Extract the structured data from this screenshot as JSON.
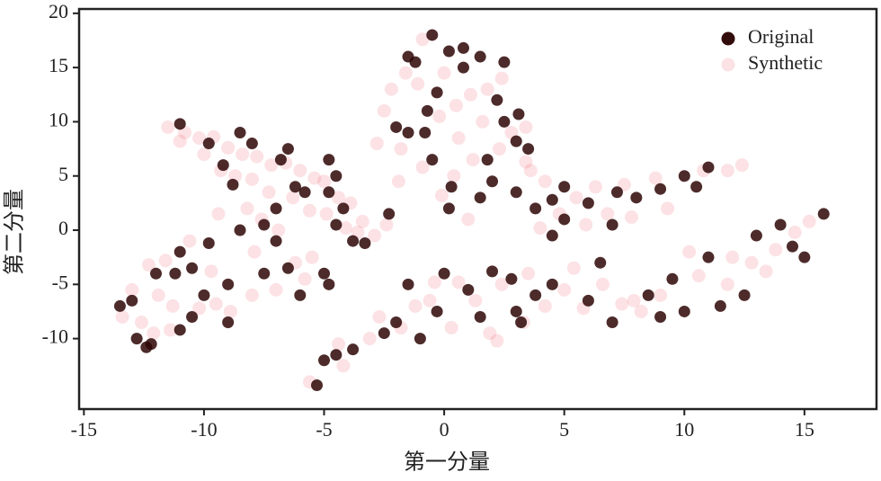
{
  "chart_data": {
    "type": "scatter",
    "x_label": "第一分量",
    "y_label": "第二分量",
    "xlim": [
      -15.2,
      18
    ],
    "ylim": [
      -16.5,
      20.4
    ],
    "xticks": [
      -15,
      -10,
      -5,
      0,
      5,
      10,
      15
    ],
    "yticks": [
      20,
      15,
      10,
      5,
      0,
      -5,
      -10
    ],
    "legend": "upper right",
    "series": [
      {
        "name": "Original",
        "color": "#2e0606",
        "opacity": 0.85,
        "x": [
          -11,
          -9.8,
          -9.2,
          -8.5,
          -8,
          -8.8,
          -6.5,
          -6.8,
          -6.2,
          -5.8,
          -7,
          -4.8,
          -4.5,
          -4.8,
          -4.2,
          -4.5,
          -3.8,
          -3.3,
          -2.3,
          -7.5,
          -8.5,
          -9.8,
          -7,
          -6.5,
          -5,
          -4.8,
          -6,
          -7.5,
          -9,
          -10,
          -10.5,
          -11,
          -11.2,
          -10.5,
          -9,
          -11,
          -12,
          -13,
          -13.5,
          -12.8,
          -12.4,
          -12.2,
          -0.5,
          0.2,
          0.8,
          1.5,
          2.5,
          -1.5,
          -1.2,
          -0.3,
          0.8,
          2.2,
          3.1,
          2.5,
          3,
          3.5,
          1.8,
          -0.7,
          -0.8,
          -1.5,
          -2,
          -0.5,
          0.3,
          0.2,
          1.5,
          2,
          3,
          3.8,
          4.5,
          5,
          5,
          6,
          7.2,
          8,
          9,
          7,
          4.5,
          10,
          10.5,
          11,
          -5.3,
          -5,
          -4.5,
          -3.8,
          -2.5,
          -2,
          -1,
          -0.3,
          -1.5,
          0,
          1,
          1.5,
          2,
          2.8,
          3,
          3.2,
          3.8,
          4.5,
          6,
          6.5,
          7,
          8.5,
          9,
          9.5,
          10,
          11,
          11.5,
          12.5,
          13,
          14,
          14.5,
          15,
          15.8
        ],
        "values": [
          9.8,
          8,
          6,
          9,
          8,
          4.2,
          7.5,
          6.5,
          4,
          3.5,
          2,
          6.5,
          5,
          3.5,
          2,
          0.5,
          -1,
          -1.2,
          1.5,
          0.5,
          0,
          -1.2,
          -1,
          -3.5,
          -4,
          -5,
          -6,
          -4,
          -5,
          -6,
          -3.5,
          -2,
          -4,
          -8,
          -8.5,
          -9.2,
          -4,
          -6.5,
          -7,
          -10,
          -10.8,
          -10.5,
          18,
          16.5,
          16.8,
          16,
          15.5,
          16,
          15.5,
          12.7,
          15,
          12,
          10.7,
          10,
          8.2,
          7.5,
          6.5,
          11,
          9,
          9,
          9.5,
          6.5,
          4,
          2,
          3,
          4.5,
          3.5,
          2,
          2.8,
          1,
          4,
          2.5,
          3.5,
          3,
          3.8,
          0.5,
          -0.5,
          5,
          4,
          5.8,
          -14.3,
          -12,
          -11.5,
          -11,
          -9.5,
          -8.5,
          -10,
          -7.5,
          -5,
          -4,
          -5.5,
          -8,
          -3.8,
          -4.5,
          -7.5,
          -8.5,
          -6,
          -5,
          -6.5,
          -3,
          -8.5,
          -6,
          -8,
          -4.5,
          -7.5,
          -2.5,
          -7,
          -6,
          -0.5,
          0.5,
          -1.5,
          -2.5,
          1.5
        ]
      },
      {
        "name": "Synthetic",
        "color": "#e8334a",
        "opacity": 0.14,
        "x": [
          -11.5,
          -10.8,
          -10.2,
          -9.6,
          -9,
          -8.4,
          -7.8,
          -7.2,
          -6.6,
          -6,
          -5.4,
          -5,
          -4.4,
          -3.9,
          -3.4,
          -2.9,
          -2.4,
          -11,
          -10,
          -9.3,
          -8.7,
          -8,
          -7.3,
          -6.3,
          -5.6,
          -4.9,
          -4.1,
          -3.6,
          -8.2,
          -7.6,
          -6.9,
          -9.4,
          -10.6,
          -11.6,
          -12.3,
          -13,
          -13.4,
          -12.6,
          -11.9,
          -11.3,
          -10.2,
          -9.5,
          -8.9,
          -8,
          -7,
          -6.2,
          -5.5,
          -5.8,
          -7.9,
          -9.7,
          -12.1,
          -11.4,
          -0.9,
          -1.6,
          -2.2,
          -1.1,
          0,
          0.5,
          1.1,
          1.8,
          2.4,
          3.4,
          -2.5,
          -1.8,
          -0.2,
          0.6,
          1.6,
          2.8,
          3.6,
          4.2,
          5.5,
          6.3,
          7.5,
          8.8,
          10.8,
          11.8,
          12.4,
          -2.8,
          -1.9,
          -0.9,
          0.4,
          1.2,
          2.3,
          3.4,
          4.8,
          5.9,
          6.8,
          7.8,
          9.3,
          4,
          1,
          -0.1,
          -5.6,
          -4.2,
          -3.1,
          -1.8,
          -0.6,
          0.6,
          1.3,
          2.4,
          3.5,
          4.2,
          5,
          5.8,
          6.6,
          7.4,
          8.2,
          9,
          10.6,
          11.8,
          12.8,
          13.8,
          15.2,
          -4.4,
          -2.7,
          -1.2,
          0.3,
          1.9,
          3.3,
          5.4,
          7.9,
          10.2,
          12,
          13.4,
          14.6,
          -0.4,
          2.2
        ],
        "values": [
          9.5,
          9,
          8.5,
          8.6,
          7.6,
          7,
          6.8,
          6,
          6.2,
          5.5,
          4.8,
          4.5,
          3,
          2.5,
          0.8,
          -0.5,
          0.5,
          8.2,
          7,
          5.5,
          5,
          4.7,
          3.5,
          3,
          1.8,
          1.5,
          0.2,
          -0.2,
          2,
          1,
          0,
          1.5,
          -1,
          -2.8,
          -3.2,
          -5.5,
          -8,
          -8.5,
          -6,
          -7,
          -7.2,
          -6.8,
          -7.5,
          -6,
          -5.5,
          -3,
          -2.5,
          -4.5,
          -2,
          -3.8,
          -9.5,
          -9.2,
          17.6,
          14.5,
          13,
          13.5,
          14.5,
          11.5,
          12.5,
          13,
          14,
          9.5,
          11,
          7.5,
          10.5,
          8.5,
          10,
          9,
          5.5,
          4.5,
          3,
          4,
          4.2,
          4.8,
          5.5,
          5.5,
          6,
          8,
          4.5,
          5.8,
          5,
          6.5,
          7.5,
          6.3,
          1.5,
          0.5,
          1.5,
          1.2,
          2,
          0.2,
          1,
          3.2,
          -14,
          -12.5,
          -10,
          -9,
          -6.5,
          -4.8,
          -6.5,
          -5,
          -4,
          -7,
          -5.5,
          -7.2,
          -5,
          -6.8,
          -7.5,
          -6,
          -4.2,
          -5,
          -3,
          -1.8,
          0.8,
          -10.5,
          -8,
          -7,
          -9,
          -9.5,
          -8.5,
          -3.5,
          -6.5,
          -2,
          -2.5,
          -3.8,
          -0.2,
          -4.8,
          -10.2
        ]
      }
    ]
  }
}
